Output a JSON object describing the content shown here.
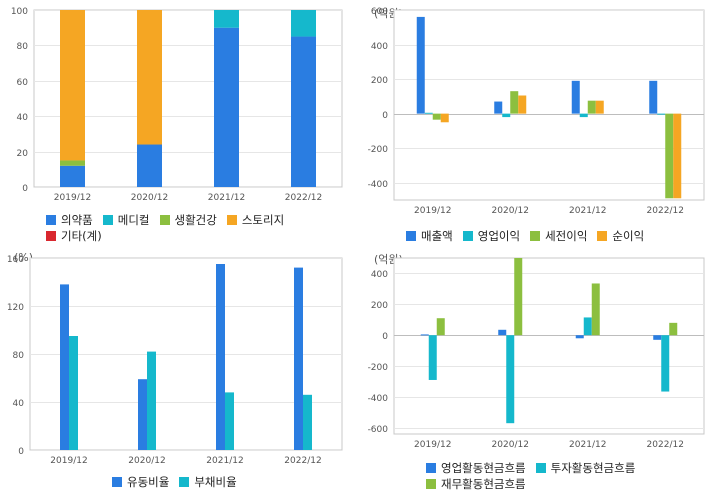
{
  "chart_data": [
    {
      "type": "bar",
      "stacked": true,
      "title": "",
      "unit": "",
      "categories": [
        "2019/12",
        "2020/12",
        "2021/12",
        "2022/12"
      ],
      "ylim": [
        0,
        100
      ],
      "yticks": [
        0,
        20,
        40,
        60,
        80,
        100
      ],
      "grid": true,
      "legend_position": "bottom",
      "series": [
        {
          "name": "의약품",
          "color": "#2a7de1",
          "values": [
            12,
            24,
            90,
            85
          ]
        },
        {
          "name": "메디컬",
          "color": "#15b8cc",
          "values": [
            0,
            0,
            10,
            15
          ]
        },
        {
          "name": "생활건강",
          "color": "#8cbf3f",
          "values": [
            3,
            0,
            0,
            0
          ]
        },
        {
          "name": "스토리지",
          "color": "#f5a623",
          "values": [
            85,
            76,
            0,
            0
          ]
        },
        {
          "name": "기타(계)",
          "color": "#d9282f",
          "values": [
            0,
            0,
            0,
            0
          ]
        }
      ]
    },
    {
      "type": "bar",
      "title": "",
      "unit": "(억원)",
      "categories": [
        "2019/12",
        "2020/12",
        "2021/12",
        "2022/12"
      ],
      "ylim": [
        -500,
        600
      ],
      "yticks": [
        -400,
        -200,
        0,
        200,
        400,
        600
      ],
      "grid": true,
      "legend_position": "bottom",
      "series": [
        {
          "name": "매출액",
          "color": "#2a7de1",
          "values": [
            560,
            70,
            190,
            190
          ]
        },
        {
          "name": "영업이익",
          "color": "#15b8cc",
          "values": [
            5,
            -20,
            -20,
            -5
          ]
        },
        {
          "name": "세전이익",
          "color": "#8cbf3f",
          "values": [
            -35,
            130,
            75,
            -490
          ]
        },
        {
          "name": "순이익",
          "color": "#f5a623",
          "values": [
            -50,
            105,
            75,
            -490
          ]
        }
      ]
    },
    {
      "type": "bar",
      "title": "",
      "unit": "(%)",
      "categories": [
        "2019/12",
        "2020/12",
        "2021/12",
        "2022/12"
      ],
      "ylim": [
        0,
        160
      ],
      "yticks": [
        0,
        40,
        80,
        120,
        160
      ],
      "grid": true,
      "legend_position": "bottom",
      "series": [
        {
          "name": "유동비율",
          "color": "#2a7de1",
          "values": [
            138,
            59,
            155,
            152
          ]
        },
        {
          "name": "부채비율",
          "color": "#15b8cc",
          "values": [
            95,
            82,
            48,
            46
          ]
        }
      ]
    },
    {
      "type": "bar",
      "title": "",
      "unit": "(억원)",
      "categories": [
        "2019/12",
        "2020/12",
        "2021/12",
        "2022/12"
      ],
      "ylim": [
        -640,
        500
      ],
      "yticks": [
        -600,
        -400,
        -200,
        0,
        200,
        400
      ],
      "grid": true,
      "legend_position": "bottom",
      "series": [
        {
          "name": "영업활동현금흐름",
          "color": "#2a7de1",
          "values": [
            5,
            35,
            -20,
            -30
          ]
        },
        {
          "name": "투자활동현금흐름",
          "color": "#15b8cc",
          "values": [
            -290,
            -570,
            115,
            -365
          ]
        },
        {
          "name": "재무활동현금흐름",
          "color": "#8cbf3f",
          "values": [
            110,
            500,
            335,
            80
          ]
        }
      ]
    }
  ]
}
